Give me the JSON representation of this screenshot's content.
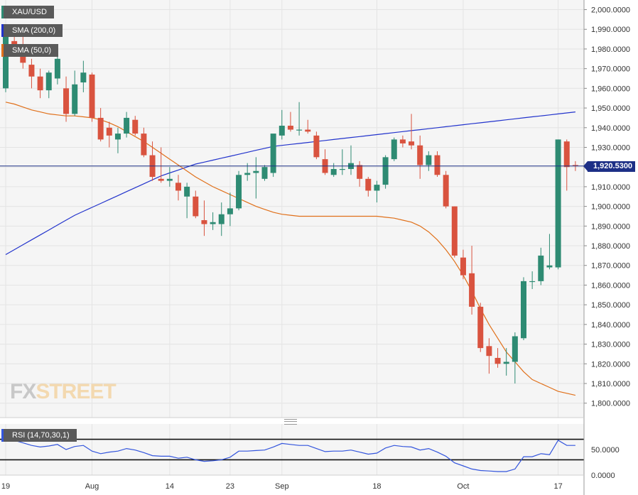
{
  "legend": {
    "symbol": "XAU/USD",
    "sma200": "SMA (200,0)",
    "sma50": "SMA (50,0)",
    "rsi": "RSI (14,70,30,1)"
  },
  "watermark": {
    "part1": "FX",
    "part2": "STREET"
  },
  "current_price_label": "1,920.5300",
  "colors": {
    "bullish": "#2e8b73",
    "bearish": "#d9533f",
    "sma200": "#2233cc",
    "sma50": "#e0701a",
    "rsi_line": "#3355dd",
    "price_line": "#1d2f86",
    "plot_bg": "#f5f5f5"
  },
  "chart_data": [
    {
      "type": "candlestick",
      "title": "",
      "price_axis_ticks": [
        "2,000.0000",
        "1,990.0000",
        "1,980.0000",
        "1,970.0000",
        "1,960.0000",
        "1,950.0000",
        "1,940.0000",
        "1,930.0000",
        "1,920.0000",
        "1,910.0000",
        "1,900.0000",
        "1,890.0000",
        "1,880.0000",
        "1,870.0000",
        "1,860.0000",
        "1,850.0000",
        "1,840.0000",
        "1,830.0000",
        "1,820.0000",
        "1,810.0000",
        "1,800.0000"
      ],
      "price_axis_values": [
        2000,
        1990,
        1980,
        1970,
        1960,
        1950,
        1940,
        1930,
        1920,
        1910,
        1900,
        1890,
        1880,
        1870,
        1860,
        1850,
        1840,
        1830,
        1820,
        1810,
        1800
      ],
      "ylim": [
        1797,
        2002
      ],
      "x_ticks": [
        {
          "label": "19",
          "index": 0
        },
        {
          "label": "Aug",
          "index": 10
        },
        {
          "label": "14",
          "index": 19
        },
        {
          "label": "23",
          "index": 26
        },
        {
          "label": "Sep",
          "index": 32
        },
        {
          "label": "18",
          "index": 43
        },
        {
          "label": "Oct",
          "index": 53
        },
        {
          "label": "17",
          "index": 64
        }
      ],
      "current_price": 1920.53,
      "candles": [
        {
          "o": 1960,
          "h": 1990,
          "l": 1958,
          "c": 1988
        },
        {
          "o": 1984,
          "h": 1992,
          "l": 1976,
          "c": 1980
        },
        {
          "o": 1980,
          "h": 1987,
          "l": 1970,
          "c": 1973
        },
        {
          "o": 1972,
          "h": 1975,
          "l": 1960,
          "c": 1966
        },
        {
          "o": 1966,
          "h": 1970,
          "l": 1955,
          "c": 1959
        },
        {
          "o": 1959,
          "h": 1969,
          "l": 1955,
          "c": 1968
        },
        {
          "o": 1965,
          "h": 1980,
          "l": 1962,
          "c": 1975
        },
        {
          "o": 1960,
          "h": 1966,
          "l": 1943,
          "c": 1947
        },
        {
          "o": 1947,
          "h": 1969,
          "l": 1946,
          "c": 1962
        },
        {
          "o": 1963,
          "h": 1974,
          "l": 1958,
          "c": 1968
        },
        {
          "o": 1967,
          "h": 1968,
          "l": 1943,
          "c": 1945
        },
        {
          "o": 1945,
          "h": 1950,
          "l": 1933,
          "c": 1934
        },
        {
          "o": 1940,
          "h": 1943,
          "l": 1930,
          "c": 1936
        },
        {
          "o": 1934,
          "h": 1940,
          "l": 1927,
          "c": 1937
        },
        {
          "o": 1937,
          "h": 1948,
          "l": 1935,
          "c": 1945
        },
        {
          "o": 1944,
          "h": 1946,
          "l": 1936,
          "c": 1937
        },
        {
          "o": 1937,
          "h": 1940,
          "l": 1925,
          "c": 1926
        },
        {
          "o": 1926,
          "h": 1933,
          "l": 1913,
          "c": 1915
        },
        {
          "o": 1914,
          "h": 1930,
          "l": 1912,
          "c": 1913
        },
        {
          "o": 1913,
          "h": 1920,
          "l": 1910,
          "c": 1914
        },
        {
          "o": 1912,
          "h": 1916,
          "l": 1903,
          "c": 1908
        },
        {
          "o": 1905,
          "h": 1912,
          "l": 1894,
          "c": 1910
        },
        {
          "o": 1905,
          "h": 1908,
          "l": 1894,
          "c": 1895
        },
        {
          "o": 1893,
          "h": 1903,
          "l": 1885,
          "c": 1891
        },
        {
          "o": 1891,
          "h": 1897,
          "l": 1888,
          "c": 1892
        },
        {
          "o": 1891,
          "h": 1902,
          "l": 1885,
          "c": 1896
        },
        {
          "o": 1896,
          "h": 1907,
          "l": 1890,
          "c": 1899
        },
        {
          "o": 1899,
          "h": 1918,
          "l": 1898,
          "c": 1916
        },
        {
          "o": 1916,
          "h": 1922,
          "l": 1913,
          "c": 1917
        },
        {
          "o": 1917,
          "h": 1925,
          "l": 1904,
          "c": 1918
        },
        {
          "o": 1914,
          "h": 1921,
          "l": 1913,
          "c": 1920
        },
        {
          "o": 1917,
          "h": 1935,
          "l": 1915,
          "c": 1937
        },
        {
          "o": 1936,
          "h": 1949,
          "l": 1934,
          "c": 1941
        },
        {
          "o": 1941,
          "h": 1948,
          "l": 1938,
          "c": 1939
        },
        {
          "o": 1939,
          "h": 1953,
          "l": 1936,
          "c": 1939
        },
        {
          "o": 1939,
          "h": 1944,
          "l": 1937,
          "c": 1938
        },
        {
          "o": 1936,
          "h": 1938,
          "l": 1924,
          "c": 1925
        },
        {
          "o": 1924,
          "h": 1929,
          "l": 1916,
          "c": 1917
        },
        {
          "o": 1916,
          "h": 1922,
          "l": 1915,
          "c": 1919
        },
        {
          "o": 1919,
          "h": 1929,
          "l": 1916,
          "c": 1919
        },
        {
          "o": 1919,
          "h": 1931,
          "l": 1916,
          "c": 1922
        },
        {
          "o": 1921,
          "h": 1923,
          "l": 1910,
          "c": 1914
        },
        {
          "o": 1914,
          "h": 1915,
          "l": 1905,
          "c": 1908
        },
        {
          "o": 1908,
          "h": 1913,
          "l": 1902,
          "c": 1911
        },
        {
          "o": 1911,
          "h": 1926,
          "l": 1909,
          "c": 1925
        },
        {
          "o": 1924,
          "h": 1935,
          "l": 1923,
          "c": 1934
        },
        {
          "o": 1934,
          "h": 1936,
          "l": 1930,
          "c": 1932
        },
        {
          "o": 1933,
          "h": 1947,
          "l": 1929,
          "c": 1931
        },
        {
          "o": 1931,
          "h": 1936,
          "l": 1914,
          "c": 1921
        },
        {
          "o": 1921,
          "h": 1928,
          "l": 1918,
          "c": 1926
        },
        {
          "o": 1926,
          "h": 1928,
          "l": 1915,
          "c": 1916
        },
        {
          "o": 1916,
          "h": 1918,
          "l": 1899,
          "c": 1900
        },
        {
          "o": 1900,
          "h": 1900,
          "l": 1874,
          "c": 1875
        },
        {
          "o": 1874,
          "h": 1878,
          "l": 1863,
          "c": 1865
        },
        {
          "o": 1866,
          "h": 1880,
          "l": 1845,
          "c": 1849
        },
        {
          "o": 1849,
          "h": 1851,
          "l": 1826,
          "c": 1828
        },
        {
          "o": 1829,
          "h": 1833,
          "l": 1815,
          "c": 1824
        },
        {
          "o": 1823,
          "h": 1828,
          "l": 1818,
          "c": 1820
        },
        {
          "o": 1820,
          "h": 1828,
          "l": 1814,
          "c": 1821
        },
        {
          "o": 1821,
          "h": 1836,
          "l": 1810,
          "c": 1834
        },
        {
          "o": 1833,
          "h": 1864,
          "l": 1832,
          "c": 1862
        },
        {
          "o": 1862,
          "h": 1867,
          "l": 1858,
          "c": 1862
        },
        {
          "o": 1862,
          "h": 1879,
          "l": 1860,
          "c": 1875
        },
        {
          "o": 1869,
          "h": 1886,
          "l": 1868,
          "c": 1870
        },
        {
          "o": 1869,
          "h": 1934,
          "l": 1868,
          "c": 1934
        },
        {
          "o": 1933,
          "h": 1934,
          "l": 1908,
          "c": 1920
        },
        {
          "o": 1921,
          "h": 1923,
          "l": 1918,
          "c": 1920.53
        }
      ],
      "series": [
        {
          "name": "SMA (200,0)",
          "values": [
            1875.5,
            1878,
            1880.5,
            1883,
            1885.5,
            1888,
            1890.5,
            1893,
            1895.5,
            1897.5,
            1899.5,
            1901.5,
            1903.5,
            1905.5,
            1907.5,
            1909.5,
            1911.5,
            1913.5,
            1915.5,
            1917,
            1918.5,
            1920,
            1921.5,
            1922.5,
            1923.5,
            1924.5,
            1925.5,
            1926.5,
            1927.5,
            1928.5,
            1929.5,
            1930.5,
            1931,
            1931.5,
            1932,
            1932.5,
            1933,
            1933.5,
            1934,
            1934.5,
            1935,
            1935.5,
            1936,
            1936.5,
            1937,
            1937.5,
            1938,
            1938.5,
            1939,
            1939.5,
            1940,
            1940.5,
            1941,
            1941.5,
            1942,
            1942.5,
            1943,
            1943.5,
            1944,
            1944.5,
            1945,
            1945.5,
            1946,
            1946.5,
            1947,
            1947.5,
            1948
          ]
        },
        {
          "name": "SMA (50,0)",
          "values": [
            1953,
            1952,
            1950.5,
            1949,
            1948,
            1947,
            1946.5,
            1946,
            1946,
            1945.5,
            1945,
            1944,
            1942.5,
            1940.5,
            1938,
            1935.5,
            1933,
            1930,
            1927,
            1924,
            1921,
            1918,
            1915,
            1912.5,
            1910,
            1908,
            1906,
            1904,
            1902,
            1900,
            1898.5,
            1897,
            1896,
            1895.5,
            1895,
            1895,
            1895,
            1895,
            1895,
            1895,
            1895,
            1895,
            1895,
            1895,
            1894.5,
            1894,
            1893,
            1892,
            1890,
            1887,
            1883,
            1878,
            1872,
            1865,
            1857,
            1848,
            1840,
            1833,
            1826,
            1821,
            1816,
            1812,
            1810,
            1808,
            1806,
            1805,
            1804
          ]
        }
      ]
    },
    {
      "type": "line",
      "title": "RSI (14,70,30,1)",
      "ylim": [
        0,
        100
      ],
      "axis_ticks": [
        "50.0000",
        "0.0000"
      ],
      "axis_values": [
        50,
        0
      ],
      "levels": [
        70,
        30
      ],
      "series": [
        {
          "name": "RSI (14,70,30,1)",
          "values": [
            70,
            68,
            63,
            58,
            55,
            57,
            60,
            50,
            56,
            58,
            47,
            42,
            45,
            47,
            52,
            49,
            44,
            38,
            37,
            37,
            33,
            35,
            30,
            27,
            28,
            30,
            35,
            47,
            47,
            48,
            49,
            55,
            62,
            60,
            58,
            58,
            52,
            46,
            47,
            47,
            49,
            45,
            41,
            43,
            53,
            58,
            56,
            55,
            49,
            52,
            45,
            37,
            24,
            18,
            12,
            9,
            8,
            7,
            7,
            12,
            36,
            36,
            42,
            40,
            68,
            58,
            58
          ]
        }
      ]
    }
  ]
}
